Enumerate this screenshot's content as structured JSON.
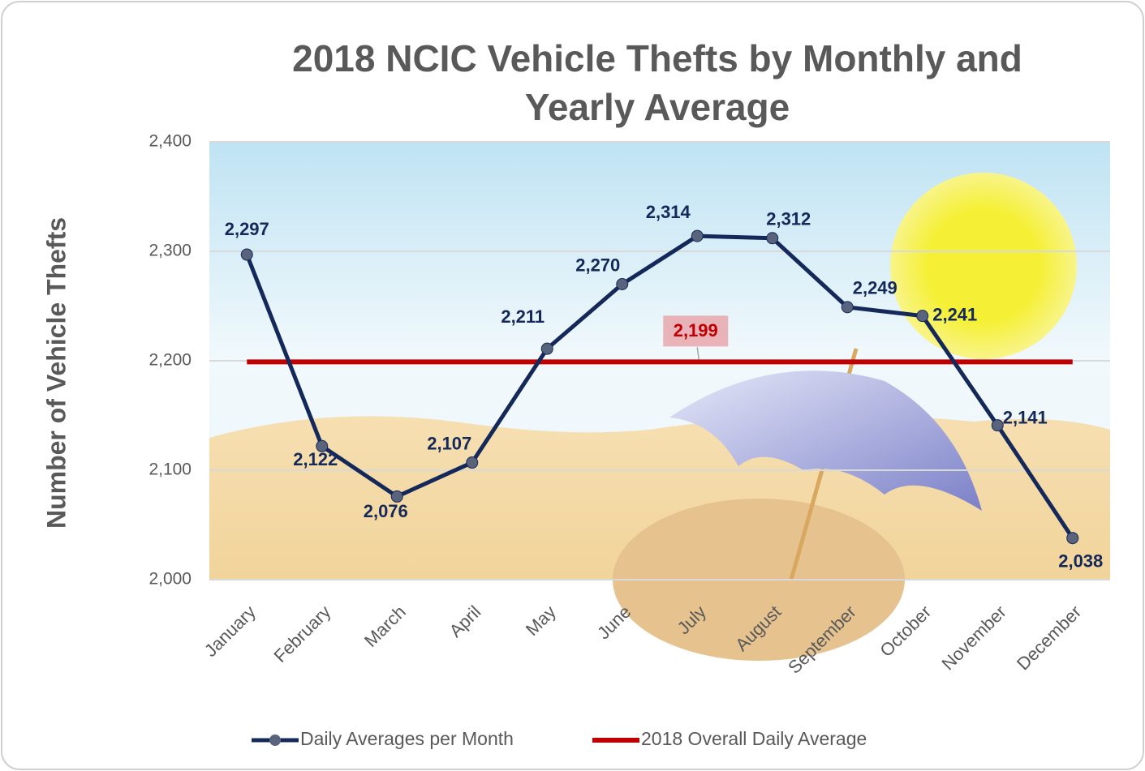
{
  "chart_data": {
    "type": "line",
    "title": "2018 NCIC Vehicle Thefts by Monthly and Yearly Average",
    "y_label": "Number of Vehicle Thefts",
    "categories": [
      "January",
      "February",
      "March",
      "April",
      "May",
      "June",
      "July",
      "August",
      "September",
      "October",
      "November",
      "December"
    ],
    "series": [
      {
        "name": "Daily Averages per Month",
        "color": "#14295a",
        "values": [
          2297,
          2122,
          2076,
          2107,
          2211,
          2270,
          2314,
          2312,
          2249,
          2241,
          2141,
          2038
        ],
        "value_labels": [
          "2,297",
          "2,122",
          "2,076",
          "2,107",
          "2,211",
          "2,270",
          "2,314",
          "2,312",
          "2,249",
          "2,241",
          "2,141",
          "2,038"
        ]
      },
      {
        "name": "2018 Overall Daily Average",
        "color": "#c00000",
        "values": [
          2199,
          2199,
          2199,
          2199,
          2199,
          2199,
          2199,
          2199,
          2199,
          2199,
          2199,
          2199
        ],
        "value_labels": [
          null,
          null,
          null,
          null,
          null,
          null,
          "2,199",
          null,
          null,
          null,
          null,
          null
        ]
      }
    ],
    "ylim": [
      2000,
      2400
    ],
    "yticks": [
      {
        "value": 2000,
        "label": "2,000"
      },
      {
        "value": 2100,
        "label": "2,100"
      },
      {
        "value": 2200,
        "label": "2,200"
      },
      {
        "value": 2300,
        "label": "2,300"
      },
      {
        "value": 2400,
        "label": "2,400"
      }
    ],
    "grid": true,
    "legend": "bottom"
  }
}
